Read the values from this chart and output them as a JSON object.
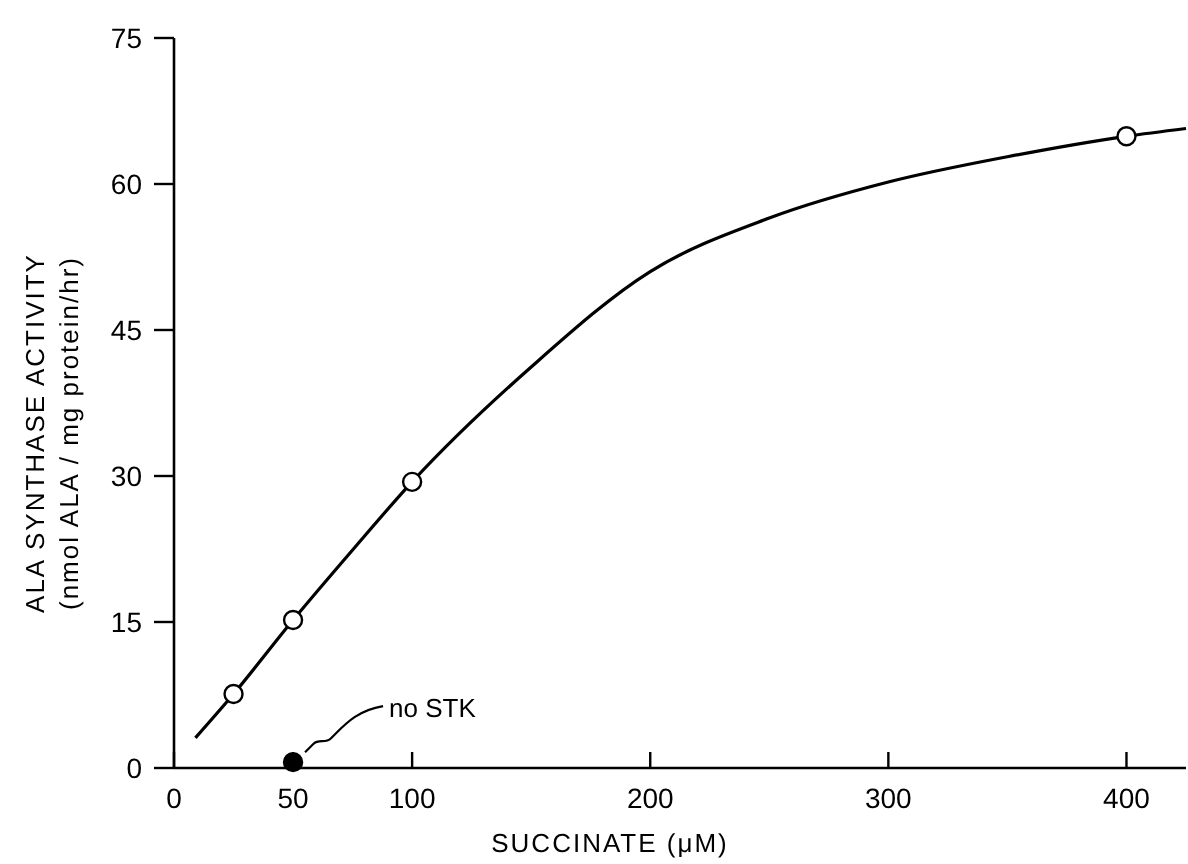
{
  "chart_data": {
    "type": "line",
    "xlabel": "SUCCINATE (μM)",
    "ylabel": "ALA SYNTHASE ACTIVITY\n(nmol ALA / mg protein/hr)",
    "xlim": [
      0,
      425
    ],
    "xticks": [
      0,
      50,
      100,
      200,
      300,
      400
    ],
    "ylim": [
      0,
      75
    ],
    "yticks": [
      0,
      15,
      30,
      45,
      60,
      75
    ],
    "grid": false,
    "series": [
      {
        "type": "line",
        "color": "#000000",
        "marker": "none",
        "x": [
          9,
          25,
          50,
          75,
          100,
          150,
          200,
          250,
          300,
          350,
          400,
          425
        ],
        "values": [
          3.1,
          7.6,
          15.2,
          22.4,
          29.4,
          41.2,
          51.0,
          56.5,
          60.2,
          62.8,
          64.9,
          65.7
        ]
      },
      {
        "type": "scatter",
        "color": "#ffffff",
        "marker": "circle",
        "x": [
          25,
          50,
          100,
          400
        ],
        "values": [
          7.6,
          15.2,
          29.4,
          64.9
        ]
      },
      {
        "type": "scatter",
        "color": "#000000",
        "marker": "circle",
        "x": [
          50
        ],
        "values": [
          0.6
        ]
      }
    ],
    "annotations": [
      {
        "text": "no STK",
        "x": 50,
        "y": 0.6
      }
    ]
  }
}
